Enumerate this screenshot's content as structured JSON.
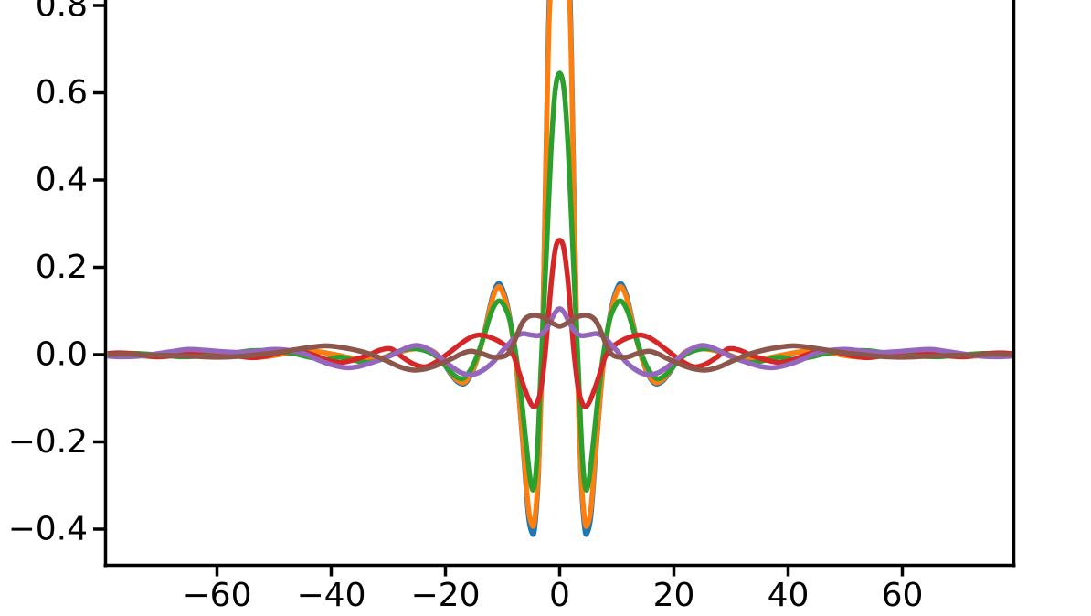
{
  "figure": {
    "background": "#ffffff",
    "spine_color": "#000000",
    "tick_color": "#000000",
    "tick_label_color": "#000000",
    "note": "matplotlib-style axes cropped at top; no title, no legend, no axis labels visible"
  },
  "axes": {
    "x_ticks": [
      {
        "value": -60,
        "label": "−60"
      },
      {
        "value": -40,
        "label": "−40"
      },
      {
        "value": -20,
        "label": "−20"
      },
      {
        "value": 0,
        "label": "0"
      },
      {
        "value": 20,
        "label": "20"
      },
      {
        "value": 40,
        "label": "40"
      },
      {
        "value": 60,
        "label": "60"
      }
    ],
    "y_ticks": [
      {
        "value": 0.8,
        "label": "0.8"
      },
      {
        "value": 0.6,
        "label": "0.6"
      },
      {
        "value": 0.4,
        "label": "0.4"
      },
      {
        "value": 0.2,
        "label": "0.2"
      },
      {
        "value": 0.0,
        "label": "0.0"
      },
      {
        "value": -0.2,
        "label": "−0.2"
      },
      {
        "value": -0.4,
        "label": "−0.4"
      }
    ]
  },
  "chart_data": {
    "type": "line",
    "title": "",
    "xlabel": "",
    "ylabel": "",
    "grid": false,
    "legend": "none",
    "x_range": [
      -79.6,
      79.6
    ],
    "y_range_visible": [
      -0.484,
      0.8125
    ],
    "x_tick_values": [
      -60,
      -40,
      -20,
      0,
      20,
      40,
      60
    ],
    "y_tick_values": [
      0.8,
      0.6,
      0.4,
      0.2,
      0.0,
      -0.2,
      -0.4
    ],
    "symmetry": "even — each series lists points for x>=0 and is mirrored about x=0",
    "series": [
      {
        "name": "C0-blue",
        "color": "#1f77b4",
        "peak_clipped_at_top": true,
        "points": [
          [
            0,
            0.96
          ],
          [
            0.9,
            0.925
          ],
          [
            1.8,
            0.82
          ],
          [
            2.5,
            0.38
          ],
          [
            3.05,
            0
          ],
          [
            3.7,
            -0.27
          ],
          [
            4.35,
            -0.395
          ],
          [
            4.85,
            -0.408
          ],
          [
            5.5,
            -0.365
          ],
          [
            6.3,
            -0.23
          ],
          [
            7.1,
            -0.1
          ],
          [
            7.9,
            0.01
          ],
          [
            9,
            0.103
          ],
          [
            10,
            0.15
          ],
          [
            10.8,
            0.162
          ],
          [
            11.8,
            0.132
          ],
          [
            13,
            0.062
          ],
          [
            14.1,
            0.004
          ],
          [
            15.3,
            -0.04
          ],
          [
            16.6,
            -0.066
          ],
          [
            17.9,
            -0.062
          ],
          [
            19.2,
            -0.042
          ],
          [
            20.6,
            -0.014
          ],
          [
            22,
            0.006
          ],
          [
            24,
            0.015
          ],
          [
            26.5,
            0.012
          ],
          [
            29,
            0.002
          ],
          [
            31.5,
            -0.009
          ],
          [
            34,
            -0.013
          ],
          [
            36.5,
            -0.008
          ],
          [
            39,
            -0.001
          ],
          [
            42,
            0.006
          ],
          [
            45,
            0.008
          ],
          [
            48,
            0.003
          ],
          [
            51,
            -0.004
          ],
          [
            54,
            -0.006
          ],
          [
            57,
            -0.002
          ],
          [
            60,
            0.003
          ],
          [
            63,
            0.006
          ],
          [
            66,
            0.002
          ],
          [
            69,
            -0.002
          ],
          [
            72,
            -0.004
          ],
          [
            75,
            0
          ],
          [
            79.6,
            0.002
          ]
        ]
      },
      {
        "name": "C1-orange",
        "color": "#ff7f0e",
        "peak_clipped_at_top": true,
        "points": [
          [
            0,
            0.917
          ],
          [
            0.9,
            0.883
          ],
          [
            1.8,
            0.783
          ],
          [
            2.5,
            0.363
          ],
          [
            3.05,
            0
          ],
          [
            3.7,
            -0.258
          ],
          [
            4.35,
            -0.377
          ],
          [
            4.85,
            -0.39
          ],
          [
            5.5,
            -0.349
          ],
          [
            6.3,
            -0.22
          ],
          [
            7.1,
            -0.096
          ],
          [
            7.9,
            0.01
          ],
          [
            9,
            0.098
          ],
          [
            10,
            0.143
          ],
          [
            10.8,
            0.155
          ],
          [
            11.8,
            0.126
          ],
          [
            13,
            0.059
          ],
          [
            14.1,
            0.004
          ],
          [
            15.3,
            -0.038
          ],
          [
            16.6,
            -0.063
          ],
          [
            17.9,
            -0.059
          ],
          [
            19.2,
            -0.04
          ],
          [
            20.6,
            -0.013
          ],
          [
            22,
            0.006
          ],
          [
            24,
            0.014
          ],
          [
            26.5,
            0.011
          ],
          [
            29,
            0.002
          ],
          [
            31.5,
            -0.009
          ],
          [
            34,
            -0.012
          ],
          [
            36.5,
            -0.008
          ],
          [
            39,
            -0.001
          ],
          [
            42,
            0.006
          ],
          [
            45,
            0.008
          ],
          [
            48,
            0.003
          ],
          [
            51,
            -0.004
          ],
          [
            54,
            -0.006
          ],
          [
            57,
            -0.002
          ],
          [
            60,
            0.003
          ],
          [
            63,
            0.006
          ],
          [
            66,
            0.002
          ],
          [
            69,
            -0.002
          ],
          [
            72,
            -0.004
          ],
          [
            75,
            0
          ],
          [
            79.6,
            0.002
          ]
        ]
      },
      {
        "name": "C2-green",
        "color": "#2ca02c",
        "peak_clipped_at_top": false,
        "points": [
          [
            0,
            0.645
          ],
          [
            0.8,
            0.603
          ],
          [
            1.5,
            0.47
          ],
          [
            2.2,
            0.27
          ],
          [
            2.8,
            0.1
          ],
          [
            3.3,
            -0.04
          ],
          [
            3.9,
            -0.22
          ],
          [
            4.5,
            -0.305
          ],
          [
            5.1,
            -0.29
          ],
          [
            5.9,
            -0.2
          ],
          [
            6.7,
            -0.1
          ],
          [
            7.6,
            -0.005
          ],
          [
            8.7,
            0.077
          ],
          [
            9.8,
            0.114
          ],
          [
            10.8,
            0.122
          ],
          [
            11.9,
            0.099
          ],
          [
            13.1,
            0.049
          ],
          [
            14.3,
            0.002
          ],
          [
            15.6,
            -0.035
          ],
          [
            17,
            -0.055
          ],
          [
            18.5,
            -0.047
          ],
          [
            20,
            -0.026
          ],
          [
            21.5,
            -0.005
          ],
          [
            23.5,
            0.009
          ],
          [
            26,
            0.014
          ],
          [
            28.5,
            0.006
          ],
          [
            31,
            -0.01
          ],
          [
            33.5,
            -0.018
          ],
          [
            36,
            -0.013
          ],
          [
            38.5,
            -0.006
          ],
          [
            41,
            -0.011
          ],
          [
            43.5,
            -0.007
          ],
          [
            46,
            0.001
          ],
          [
            48.5,
            0.006
          ],
          [
            51,
            0.009
          ],
          [
            54,
            0.009
          ],
          [
            57,
            0.004
          ],
          [
            60,
            0.002
          ],
          [
            63,
            -0.003
          ],
          [
            66,
            -0.005
          ],
          [
            69,
            -0.002
          ],
          [
            72,
            0.001
          ],
          [
            75,
            0.003
          ],
          [
            79.6,
            0.001
          ]
        ]
      },
      {
        "name": "C3-red",
        "color": "#d62728",
        "peak_clipped_at_top": false,
        "points": [
          [
            0,
            0.262
          ],
          [
            0.7,
            0.245
          ],
          [
            1.4,
            0.175
          ],
          [
            2,
            0.083
          ],
          [
            2.55,
            0
          ],
          [
            3.2,
            -0.073
          ],
          [
            3.9,
            -0.11
          ],
          [
            4.6,
            -0.119
          ],
          [
            5.4,
            -0.103
          ],
          [
            6.3,
            -0.072
          ],
          [
            7.2,
            -0.037
          ],
          [
            8.1,
            -0.002
          ],
          [
            9.5,
            0.02
          ],
          [
            11,
            0.033
          ],
          [
            12.5,
            0.041
          ],
          [
            14,
            0.045
          ],
          [
            15.5,
            0.04
          ],
          [
            17,
            0.028
          ],
          [
            18.5,
            0.013
          ],
          [
            20,
            -0.002
          ],
          [
            21.5,
            -0.016
          ],
          [
            23.5,
            -0.028
          ],
          [
            25.5,
            -0.022
          ],
          [
            27.5,
            -0.006
          ],
          [
            29.5,
            0.013
          ],
          [
            31.5,
            0.01
          ],
          [
            33.5,
            -0.001
          ],
          [
            36,
            -0.012
          ],
          [
            38.5,
            -0.018
          ],
          [
            41,
            -0.011
          ],
          [
            43.5,
            0.001
          ],
          [
            46,
            0.009
          ],
          [
            48.5,
            0.006
          ],
          [
            51,
            -0.002
          ],
          [
            53.5,
            -0.007
          ],
          [
            56,
            -0.004
          ],
          [
            59,
            0.004
          ],
          [
            62,
            0.008
          ],
          [
            65,
            0.003
          ],
          [
            68,
            -0.003
          ],
          [
            71,
            -0.005
          ],
          [
            74,
            0.001
          ],
          [
            77,
            0.004
          ],
          [
            79.6,
            0.002
          ]
        ]
      },
      {
        "name": "C4-purple",
        "color": "#9467bd",
        "peak_clipped_at_top": false,
        "points": [
          [
            0,
            0.105
          ],
          [
            0.8,
            0.096
          ],
          [
            1.6,
            0.076
          ],
          [
            2.5,
            0.056
          ],
          [
            3.6,
            0.044
          ],
          [
            5,
            0.045
          ],
          [
            6.5,
            0.048
          ],
          [
            7.8,
            0.04
          ],
          [
            9,
            0.023
          ],
          [
            10.2,
            0.006
          ],
          [
            11.5,
            -0.015
          ],
          [
            13,
            -0.032
          ],
          [
            14.5,
            -0.043
          ],
          [
            16,
            -0.046
          ],
          [
            17.5,
            -0.04
          ],
          [
            19,
            -0.027
          ],
          [
            20.5,
            -0.011
          ],
          [
            22,
            0.004
          ],
          [
            23.5,
            0.016
          ],
          [
            25,
            0.021
          ],
          [
            26.5,
            0.017
          ],
          [
            28,
            0.008
          ],
          [
            29.5,
            -0.002
          ],
          [
            31.5,
            -0.012
          ],
          [
            33.5,
            -0.021
          ],
          [
            35.5,
            -0.028
          ],
          [
            37.5,
            -0.03
          ],
          [
            40,
            -0.023
          ],
          [
            42.5,
            -0.011
          ],
          [
            44.5,
            0.001
          ],
          [
            47,
            0.009
          ],
          [
            50,
            0.012
          ],
          [
            53,
            0.008
          ],
          [
            56,
            0.005
          ],
          [
            59,
            0.007
          ],
          [
            62,
            0.01
          ],
          [
            65,
            0.012
          ],
          [
            68,
            0.007
          ],
          [
            71,
            0.001
          ],
          [
            74,
            -0.004
          ],
          [
            77,
            -0.005
          ],
          [
            79.6,
            -0.003
          ]
        ]
      },
      {
        "name": "C5-brown",
        "color": "#8c564b",
        "peak_clipped_at_top": false,
        "points": [
          [
            0,
            0.065
          ],
          [
            1,
            0.07
          ],
          [
            2,
            0.078
          ],
          [
            3,
            0.086
          ],
          [
            4.3,
            0.09
          ],
          [
            5.5,
            0.087
          ],
          [
            6.5,
            0.074
          ],
          [
            7.5,
            0.044
          ],
          [
            8.4,
            0.015
          ],
          [
            9.3,
            -0.001
          ],
          [
            10.5,
            -0.006
          ],
          [
            12,
            -0.005
          ],
          [
            13.5,
            0.002
          ],
          [
            15.5,
            0.008
          ],
          [
            17,
            0.003
          ],
          [
            18.5,
            -0.007
          ],
          [
            20,
            -0.016
          ],
          [
            22,
            -0.027
          ],
          [
            24,
            -0.034
          ],
          [
            26,
            -0.035
          ],
          [
            28,
            -0.028
          ],
          [
            30,
            -0.016
          ],
          [
            32.5,
            -0.002
          ],
          [
            35,
            0.008
          ],
          [
            38,
            0.016
          ],
          [
            41,
            0.02
          ],
          [
            44,
            0.016
          ],
          [
            47,
            0.01
          ],
          [
            50,
            0.004
          ],
          [
            53,
            0
          ],
          [
            56,
            -0.004
          ],
          [
            60,
            -0.006
          ],
          [
            64,
            -0.004
          ],
          [
            68,
            -0.002
          ],
          [
            72,
            -0.001
          ],
          [
            76,
            0.001
          ],
          [
            79.6,
            0
          ]
        ]
      }
    ]
  }
}
